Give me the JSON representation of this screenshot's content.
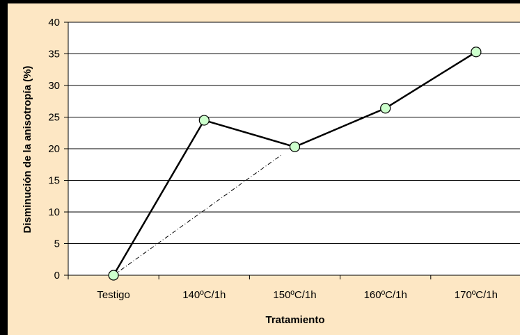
{
  "chart_data": {
    "type": "line",
    "categories": [
      "Testigo",
      "140ºC/1h",
      "150ºC/1h",
      "160ºC/1h",
      "170ºC/1h"
    ],
    "series": [
      {
        "values": [
          0,
          24.5,
          20.3,
          26.4,
          35.3
        ]
      }
    ],
    "trend_line": {
      "from": [
        0,
        0
      ],
      "to": [
        1.85,
        19.0
      ],
      "style": "dash-dot"
    },
    "xlabel": "Tratamiento",
    "ylabel": "Disminución de la anisotropía (%)",
    "ylim": [
      0,
      40
    ],
    "yticks": [
      "0",
      "5",
      "10",
      "15",
      "20",
      "25",
      "30",
      "35",
      "40"
    ],
    "grid": true,
    "colors": {
      "background": "#FDE7C4",
      "plot_area": "#FFFFFF",
      "marker_fill": "#CCFFCC",
      "line": "#000000",
      "outer": "#000000"
    }
  }
}
